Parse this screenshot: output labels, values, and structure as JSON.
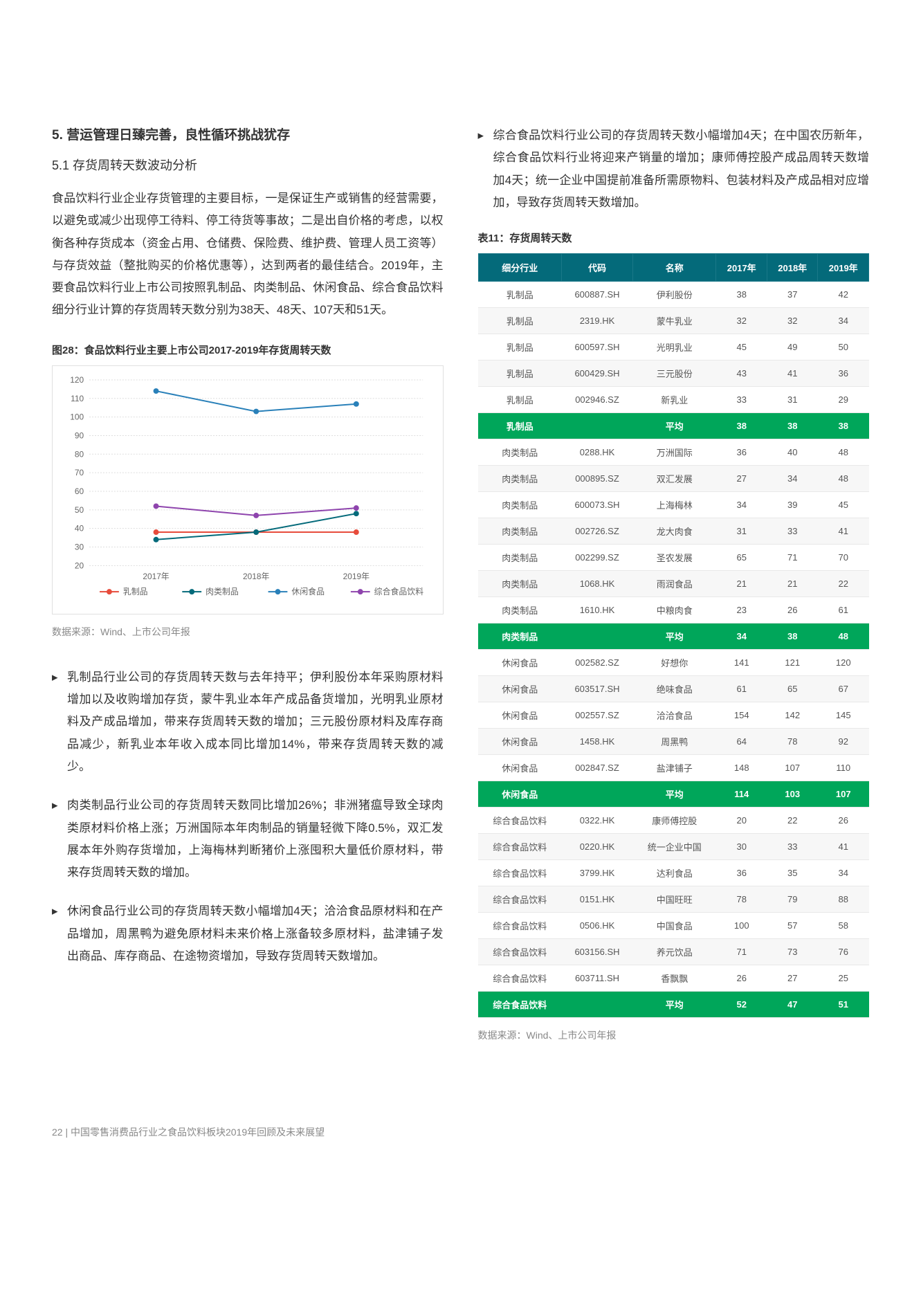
{
  "heading": "5. 营运管理日臻完善，良性循环挑战犹存",
  "subsection": "5.1 存货周转天数波动分析",
  "intro_para": "食品饮料行业企业存货管理的主要目标，一是保证生产或销售的经营需要，以避免或减少出现停工待料、停工待货等事故；二是出自价格的考虑，以权衡各种存货成本（资金占用、仓储费、保险费、维护费、管理人员工资等）与存货效益（整批购买的价格优惠等），达到两者的最佳结合。2019年，主要食品饮料行业上市公司按照乳制品、肉类制品、休闲食品、综合食品饮料细分行业计算的存货周转天数分别为38天、48天、107天和51天。",
  "chart": {
    "title": "图28：食品饮料行业主要上市公司2017-2019年存货周转天数",
    "type": "line",
    "categories": [
      "2017年",
      "2018年",
      "2019年"
    ],
    "ylim_min": 20,
    "ylim_max": 120,
    "ytick_step": 10,
    "series": [
      {
        "name": "乳制品",
        "color": "#e74c3c",
        "values": [
          38,
          38,
          38
        ]
      },
      {
        "name": "肉类制品",
        "color": "#046a7a",
        "values": [
          34,
          38,
          48
        ]
      },
      {
        "name": "休闲食品",
        "color": "#2980b9",
        "values": [
          114,
          103,
          107
        ]
      },
      {
        "name": "综合食品饮料",
        "color": "#8e44ad",
        "values": [
          52,
          47,
          51
        ]
      }
    ]
  },
  "source_text": "数据来源：Wind、上市公司年报",
  "bullets": [
    "乳制品行业公司的存货周转天数与去年持平；伊利股份本年采购原材料增加以及收购增加存货，蒙牛乳业本年产成品备货增加，光明乳业原材料及产成品增加，带来存货周转天数的增加；三元股份原材料及库存商品减少，新乳业本年收入成本同比增加14%，带来存货周转天数的减少。",
    "肉类制品行业公司的存货周转天数同比增加26%；非洲猪瘟导致全球肉类原材料价格上涨；万洲国际本年肉制品的销量轻微下降0.5%，双汇发展本年外购存货增加，上海梅林判断猪价上涨囤积大量低价原材料，带来存货周转天数的增加。",
    "休闲食品行业公司的存货周转天数小幅增加4天；洽洽食品原材料和在产品增加，周黑鸭为避免原材料未来价格上涨备较多原材料，盐津铺子发出商品、库存商品、在途物资增加，导致存货周转天数增加。"
  ],
  "right_bullet": "综合食品饮料行业公司的存货周转天数小幅增加4天；在中国农历新年，综合食品饮料行业将迎来产销量的增加；康师傅控股产成品周转天数增加4天；统一企业中国提前准备所需原物料、包装材料及产成品相对应增加，导致存货周转天数增加。",
  "table": {
    "title": "表11：存货周转天数",
    "columns": [
      "细分行业",
      "代码",
      "名称",
      "2017年",
      "2018年",
      "2019年"
    ],
    "header_bg": "#046a7a",
    "avg_bg": "#00a65a",
    "rows": [
      {
        "cells": [
          "乳制品",
          "600887.SH",
          "伊利股份",
          "38",
          "37",
          "42"
        ],
        "avg": false
      },
      {
        "cells": [
          "乳制品",
          "2319.HK",
          "蒙牛乳业",
          "32",
          "32",
          "34"
        ],
        "avg": false
      },
      {
        "cells": [
          "乳制品",
          "600597.SH",
          "光明乳业",
          "45",
          "49",
          "50"
        ],
        "avg": false
      },
      {
        "cells": [
          "乳制品",
          "600429.SH",
          "三元股份",
          "43",
          "41",
          "36"
        ],
        "avg": false
      },
      {
        "cells": [
          "乳制品",
          "002946.SZ",
          "新乳业",
          "33",
          "31",
          "29"
        ],
        "avg": false
      },
      {
        "cells": [
          "乳制品",
          "",
          "平均",
          "38",
          "38",
          "38"
        ],
        "avg": true
      },
      {
        "cells": [
          "肉类制品",
          "0288.HK",
          "万洲国际",
          "36",
          "40",
          "48"
        ],
        "avg": false
      },
      {
        "cells": [
          "肉类制品",
          "000895.SZ",
          "双汇发展",
          "27",
          "34",
          "48"
        ],
        "avg": false
      },
      {
        "cells": [
          "肉类制品",
          "600073.SH",
          "上海梅林",
          "34",
          "39",
          "45"
        ],
        "avg": false
      },
      {
        "cells": [
          "肉类制品",
          "002726.SZ",
          "龙大肉食",
          "31",
          "33",
          "41"
        ],
        "avg": false
      },
      {
        "cells": [
          "肉类制品",
          "002299.SZ",
          "圣农发展",
          "65",
          "71",
          "70"
        ],
        "avg": false
      },
      {
        "cells": [
          "肉类制品",
          "1068.HK",
          "雨润食品",
          "21",
          "21",
          "22"
        ],
        "avg": false
      },
      {
        "cells": [
          "肉类制品",
          "1610.HK",
          "中粮肉食",
          "23",
          "26",
          "61"
        ],
        "avg": false
      },
      {
        "cells": [
          "肉类制品",
          "",
          "平均",
          "34",
          "38",
          "48"
        ],
        "avg": true
      },
      {
        "cells": [
          "休闲食品",
          "002582.SZ",
          "好想你",
          "141",
          "121",
          "120"
        ],
        "avg": false
      },
      {
        "cells": [
          "休闲食品",
          "603517.SH",
          "绝味食品",
          "61",
          "65",
          "67"
        ],
        "avg": false
      },
      {
        "cells": [
          "休闲食品",
          "002557.SZ",
          "洽洽食品",
          "154",
          "142",
          "145"
        ],
        "avg": false
      },
      {
        "cells": [
          "休闲食品",
          "1458.HK",
          "周黑鸭",
          "64",
          "78",
          "92"
        ],
        "avg": false
      },
      {
        "cells": [
          "休闲食品",
          "002847.SZ",
          "盐津铺子",
          "148",
          "107",
          "110"
        ],
        "avg": false
      },
      {
        "cells": [
          "休闲食品",
          "",
          "平均",
          "114",
          "103",
          "107"
        ],
        "avg": true
      },
      {
        "cells": [
          "综合食品饮料",
          "0322.HK",
          "康师傅控股",
          "20",
          "22",
          "26"
        ],
        "avg": false
      },
      {
        "cells": [
          "综合食品饮料",
          "0220.HK",
          "统一企业中国",
          "30",
          "33",
          "41"
        ],
        "avg": false
      },
      {
        "cells": [
          "综合食品饮料",
          "3799.HK",
          "达利食品",
          "36",
          "35",
          "34"
        ],
        "avg": false
      },
      {
        "cells": [
          "综合食品饮料",
          "0151.HK",
          "中国旺旺",
          "78",
          "79",
          "88"
        ],
        "avg": false
      },
      {
        "cells": [
          "综合食品饮料",
          "0506.HK",
          "中国食品",
          "100",
          "57",
          "58"
        ],
        "avg": false
      },
      {
        "cells": [
          "综合食品饮料",
          "603156.SH",
          "养元饮品",
          "71",
          "73",
          "76"
        ],
        "avg": false
      },
      {
        "cells": [
          "综合食品饮料",
          "603711.SH",
          "香飘飘",
          "26",
          "27",
          "25"
        ],
        "avg": false
      },
      {
        "cells": [
          "综合食品饮料",
          "",
          "平均",
          "52",
          "47",
          "51"
        ],
        "avg": true
      }
    ]
  },
  "footer": "22 | 中国零售消费品行业之食品饮料板块2019年回顾及未来展望"
}
